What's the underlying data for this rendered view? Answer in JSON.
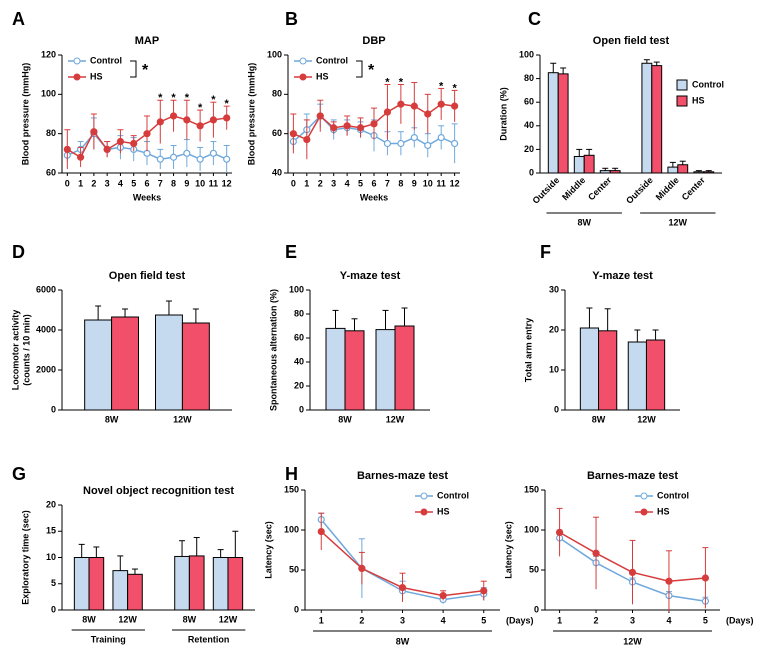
{
  "chart_data": [
    {
      "type": "line",
      "label": "A",
      "title": "MAP",
      "ylabel": "Blood pressure (mmHg)",
      "xlabel": "Weeks",
      "x": [
        0,
        1,
        2,
        3,
        4,
        5,
        6,
        7,
        8,
        9,
        10,
        11,
        12
      ],
      "xlim": [
        -0.4,
        12.4
      ],
      "xticks": [
        0,
        1,
        2,
        3,
        4,
        5,
        6,
        7,
        8,
        9,
        10,
        11,
        12
      ],
      "ylim": [
        60,
        120
      ],
      "yticks": [
        60,
        80,
        100,
        120
      ],
      "legend": "upper-left",
      "series": [
        {
          "name": "Control",
          "color": "#6fa8dc",
          "values": [
            69,
            72,
            80,
            72,
            73,
            72,
            70,
            67,
            68,
            70,
            67,
            70,
            67
          ],
          "errors": [
            3,
            4,
            8,
            4,
            6,
            6,
            6,
            5,
            6,
            7,
            6,
            6,
            7
          ]
        },
        {
          "name": "HS",
          "color": "#d63c3c",
          "values": [
            72,
            68,
            81,
            72,
            76,
            75,
            80,
            86,
            89,
            87,
            84,
            87,
            88
          ],
          "errors": [
            10,
            5,
            9,
            4,
            6,
            4,
            9,
            11,
            8,
            10,
            8,
            9,
            6
          ]
        }
      ],
      "significance": {
        "label": "*",
        "x": [
          7,
          8,
          9,
          10,
          11,
          12
        ]
      }
    },
    {
      "type": "line",
      "label": "B",
      "title": "DBP",
      "ylabel": "Blood pressure (mmHg)",
      "xlabel": "Weeks",
      "x": [
        0,
        1,
        2,
        3,
        4,
        5,
        6,
        7,
        8,
        9,
        10,
        11,
        12
      ],
      "xlim": [
        -0.4,
        12.4
      ],
      "xticks": [
        0,
        1,
        2,
        3,
        4,
        5,
        6,
        7,
        8,
        9,
        10,
        11,
        12
      ],
      "ylim": [
        40,
        100
      ],
      "yticks": [
        40,
        60,
        80,
        100
      ],
      "legend": "upper-left",
      "series": [
        {
          "name": "Control",
          "color": "#6fa8dc",
          "values": [
            56,
            62,
            69,
            62,
            63,
            62,
            59,
            55,
            55,
            58,
            54,
            58,
            55
          ],
          "errors": [
            4,
            8,
            6,
            5,
            4,
            4,
            8,
            6,
            6,
            5,
            6,
            6,
            10
          ]
        },
        {
          "name": "HS",
          "color": "#d63c3c",
          "values": [
            60,
            57,
            69,
            63,
            64,
            63,
            65,
            71,
            75,
            74,
            70,
            75,
            74
          ],
          "errors": [
            10,
            10,
            8,
            3,
            5,
            5,
            8,
            14,
            10,
            12,
            10,
            8,
            8
          ]
        }
      ],
      "significance": {
        "label": "*",
        "x": [
          7,
          8,
          11,
          12
        ]
      }
    },
    {
      "type": "bar",
      "label": "C",
      "title": "Open field test",
      "ylabel": "Duration (%)",
      "groups": [
        {
          "label": "8W",
          "categories": [
            "Outside",
            "Middle",
            "Center"
          ]
        },
        {
          "label": "12W",
          "categories": [
            "Outside",
            "Middle",
            "Center"
          ]
        }
      ],
      "ylim": [
        0,
        100
      ],
      "yticks": [
        0,
        20,
        40,
        60,
        80,
        100
      ],
      "legend": "right",
      "series": [
        {
          "name": "Control",
          "color": "#c5d9ef",
          "values": [
            85,
            14,
            2,
            93,
            5,
            1
          ],
          "errors": [
            8,
            6,
            2,
            3,
            4,
            1
          ]
        },
        {
          "name": "HS",
          "color": "#f2506a",
          "values": [
            84,
            15,
            2,
            91,
            7,
            1
          ],
          "errors": [
            5,
            5,
            2,
            3,
            3,
            1
          ]
        }
      ]
    },
    {
      "type": "bar",
      "label": "D",
      "title": "Open field test",
      "ylabel": [
        "Locomotor activity",
        "(counts / 10 min)"
      ],
      "categories": [
        "8W",
        "12W"
      ],
      "ylim": [
        0,
        6000
      ],
      "yticks": [
        0,
        2000,
        4000,
        6000
      ],
      "series": [
        {
          "name": "Control",
          "color": "#c5d9ef",
          "values": [
            4500,
            4750
          ],
          "errors": [
            700,
            700
          ]
        },
        {
          "name": "HS",
          "color": "#f2506a",
          "values": [
            4650,
            4350
          ],
          "errors": [
            400,
            700
          ]
        }
      ]
    },
    {
      "type": "bar",
      "label": "E",
      "title": "Y-maze test",
      "ylabel": "Spontaneous alternation (%)",
      "categories": [
        "8W",
        "12W"
      ],
      "ylim": [
        0,
        100
      ],
      "yticks": [
        0,
        20,
        40,
        60,
        80,
        100
      ],
      "series": [
        {
          "name": "Control",
          "color": "#c5d9ef",
          "values": [
            68,
            67
          ],
          "errors": [
            15,
            16
          ]
        },
        {
          "name": "HS",
          "color": "#f2506a",
          "values": [
            66,
            70
          ],
          "errors": [
            10,
            15
          ]
        }
      ]
    },
    {
      "type": "bar",
      "label": "F",
      "title": "Y-maze test",
      "ylabel": "Total arm entry",
      "categories": [
        "8W",
        "12W"
      ],
      "ylim": [
        0,
        30
      ],
      "yticks": [
        0,
        10,
        20,
        30
      ],
      "series": [
        {
          "name": "Control",
          "color": "#c5d9ef",
          "values": [
            20.5,
            17
          ],
          "errors": [
            5,
            3
          ]
        },
        {
          "name": "HS",
          "color": "#f2506a",
          "values": [
            19.8,
            17.5
          ],
          "errors": [
            5.5,
            2.5
          ]
        }
      ]
    },
    {
      "type": "bar",
      "label": "G",
      "title": "Novel object recognition test",
      "ylabel": "Exploratory time (sec)",
      "groups": [
        {
          "label": "Training",
          "categories": [
            "8W",
            "12W"
          ]
        },
        {
          "label": "Retention",
          "categories": [
            "8W",
            "12W"
          ]
        }
      ],
      "ylim": [
        0,
        20
      ],
      "yticks": [
        0,
        5,
        10,
        15,
        20
      ],
      "series": [
        {
          "name": "Control",
          "color": "#c5d9ef",
          "values": [
            10,
            7.5,
            10.2,
            10
          ],
          "errors": [
            2.5,
            2.8,
            3,
            1.5
          ]
        },
        {
          "name": "HS",
          "color": "#f2506a",
          "values": [
            10,
            6.8,
            10.3,
            10
          ],
          "errors": [
            2,
            1,
            3.5,
            5
          ]
        }
      ]
    },
    {
      "type": "line",
      "label": "H",
      "title": "Barnes-maze test",
      "ylabel": "Latency (sec)",
      "xlabel": "8W",
      "xunit": "(Days)",
      "x": [
        1,
        2,
        3,
        4,
        5
      ],
      "xlim": [
        0.6,
        5.4
      ],
      "xticks": [
        1,
        2,
        3,
        4,
        5
      ],
      "ylim": [
        0,
        150
      ],
      "yticks": [
        0,
        50,
        100,
        150
      ],
      "legend": "upper-right",
      "series": [
        {
          "name": "Control",
          "color": "#6fa8dc",
          "values": [
            113,
            52,
            24,
            13,
            20
          ],
          "errors": [
            8,
            37,
            12,
            5,
            8
          ]
        },
        {
          "name": "HS",
          "color": "#d63c3c",
          "values": [
            98,
            52,
            28,
            18,
            24
          ],
          "errors": [
            23,
            20,
            18,
            6,
            12
          ]
        }
      ]
    },
    {
      "type": "line",
      "title": "Barnes-maze test",
      "ylabel": "Latency (sec)",
      "xlabel": "12W",
      "xunit": "(Days)",
      "x": [
        1,
        2,
        3,
        4,
        5
      ],
      "xlim": [
        0.6,
        5.4
      ],
      "xticks": [
        1,
        2,
        3,
        4,
        5
      ],
      "ylim": [
        0,
        150
      ],
      "yticks": [
        0,
        50,
        100,
        150
      ],
      "legend": "upper-right",
      "series": [
        {
          "name": "Control",
          "color": "#6fa8dc",
          "values": [
            90,
            59,
            35,
            18,
            11
          ],
          "errors": [
            10,
            8,
            5,
            5,
            5
          ]
        },
        {
          "name": "HS",
          "color": "#d63c3c",
          "values": [
            97,
            71,
            47,
            36,
            40
          ],
          "errors": [
            30,
            45,
            40,
            38,
            38
          ]
        }
      ]
    }
  ]
}
